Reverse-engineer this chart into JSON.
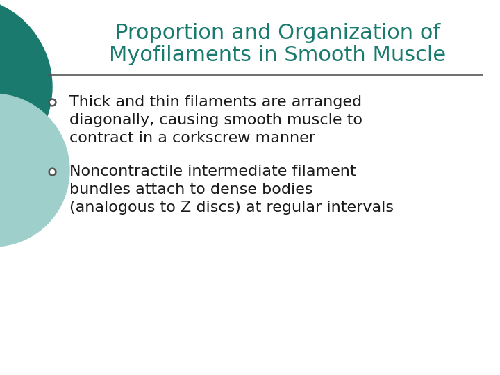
{
  "title_line1": "Proportion and Organization of",
  "title_line2": "Myofilaments in Smooth Muscle",
  "title_color": "#1a7a6e",
  "title_fontsize": 22,
  "bg_color": "#ffffff",
  "separator_color": "#555555",
  "bullet_color": "#1a1a1a",
  "bullet_marker_color": "#555555",
  "bullet_fontsize": 16,
  "bullet1_line1": "Thick and thin filaments are arranged",
  "bullet1_line2": "diagonally, causing smooth muscle to",
  "bullet1_line3": "contract in a corkscrew manner",
  "bullet2_line1": "Noncontractile intermediate filament",
  "bullet2_line2": "bundles attach to dense bodies",
  "bullet2_line3": "(analogous to Z discs) at regular intervals",
  "circle_large_color": "#1a7a6e",
  "circle_small_color": "#9ecfca",
  "font_family": "DejaVu Sans"
}
